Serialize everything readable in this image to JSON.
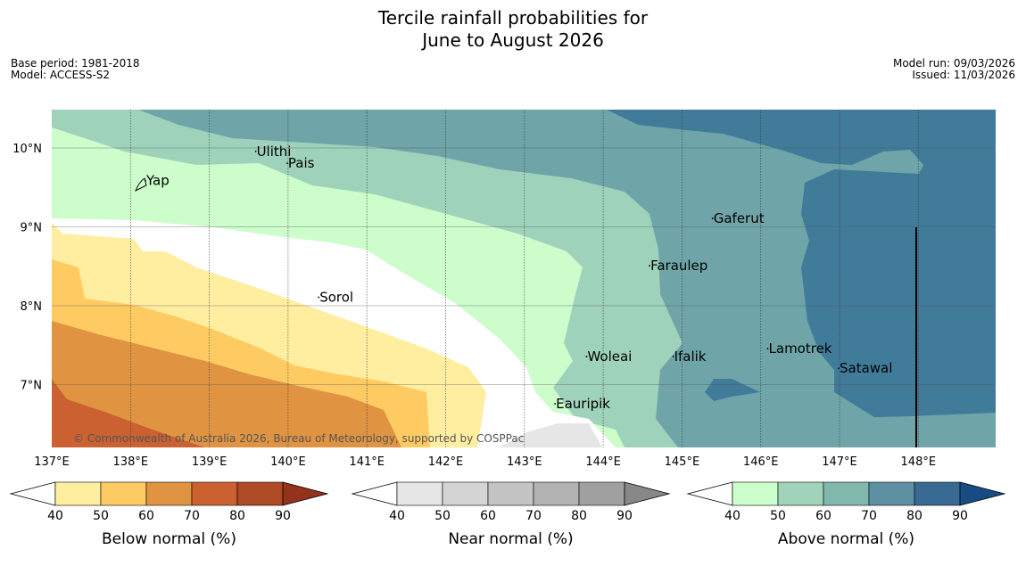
{
  "title": {
    "line1": "Tercile rainfall probabilities for",
    "line2": "June to August 2026"
  },
  "meta_left": {
    "base_period": "Base period: 1981-2018",
    "model": "Model: ACCESS-S2"
  },
  "meta_right": {
    "model_run": "Model run: 09/03/2026",
    "issued": "Issued: 11/03/2026"
  },
  "map": {
    "lon_labels": [
      "137°E",
      "138°E",
      "139°E",
      "140°E",
      "141°E",
      "142°E",
      "143°E",
      "144°E",
      "145°E",
      "146°E",
      "147°E",
      "148°E"
    ],
    "lat_labels": [
      "10°N",
      "9°N",
      "8°N",
      "7°N"
    ],
    "copyright": "© Commonwealth of Australia 2026, Bureau of Meteorology, supported by COSPPac",
    "places": [
      {
        "name": "Yap",
        "lon": 138.2,
        "lat": 9.53
      },
      {
        "name": "Ulithi",
        "lon": 139.6,
        "lat": 9.9
      },
      {
        "name": "Pais",
        "lon": 140.0,
        "lat": 9.75
      },
      {
        "name": "Sorol",
        "lon": 140.4,
        "lat": 8.05
      },
      {
        "name": "Gaferut",
        "lon": 145.4,
        "lat": 9.05
      },
      {
        "name": "Faraulep",
        "lon": 144.6,
        "lat": 8.45
      },
      {
        "name": "Lamotrek",
        "lon": 146.1,
        "lat": 7.4
      },
      {
        "name": "Woleai",
        "lon": 143.8,
        "lat": 7.3
      },
      {
        "name": "Ifalik",
        "lon": 144.9,
        "lat": 7.3
      },
      {
        "name": "Satawal",
        "lon": 147.0,
        "lat": 7.15
      },
      {
        "name": "Eauripik",
        "lon": 143.4,
        "lat": 6.7
      }
    ]
  },
  "colorbars": [
    {
      "title": "Below normal (%)",
      "ticks": [
        "40",
        "50",
        "60",
        "70",
        "80",
        "90"
      ],
      "colors": [
        "#ffeda0",
        "#fecb63",
        "#e09442",
        "#cb6131",
        "#ae4a25",
        "#93331c"
      ]
    },
    {
      "title": "Near normal (%)",
      "ticks": [
        "40",
        "50",
        "60",
        "70",
        "80",
        "90"
      ],
      "colors": [
        "#e6e6e6",
        "#d4d4d4",
        "#c4c4c4",
        "#b3b3b3",
        "#a0a0a0",
        "#888888"
      ]
    },
    {
      "title": "Above normal (%)",
      "ticks": [
        "40",
        "50",
        "60",
        "70",
        "80",
        "90"
      ],
      "colors": [
        "#ccffcc",
        "#a1d3bb",
        "#80b8ad",
        "#5c90a2",
        "#386a93",
        "#184b84"
      ]
    }
  ]
}
